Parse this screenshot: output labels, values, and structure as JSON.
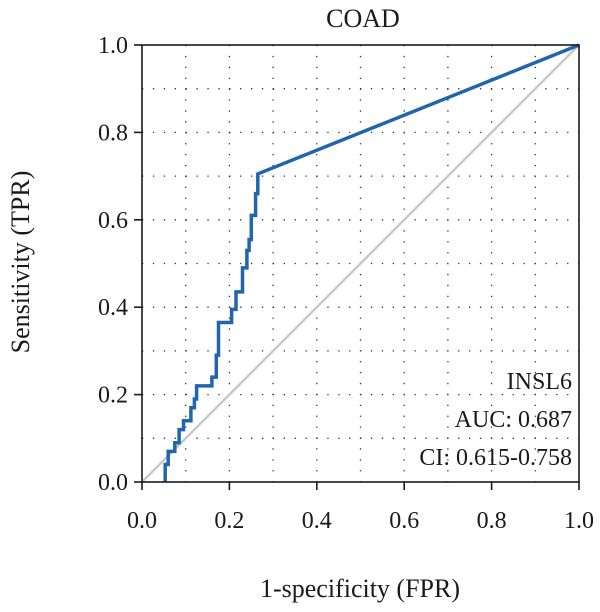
{
  "chart_data": {
    "type": "line",
    "title": "COAD",
    "xlabel": "1-specificity (FPR)",
    "ylabel": "Sensitivity (TPR)",
    "xlim": [
      0.0,
      1.0
    ],
    "ylim": [
      0.0,
      1.0
    ],
    "x_ticks": [
      "0.0",
      "0.2",
      "0.4",
      "0.6",
      "0.8",
      "1.0"
    ],
    "y_ticks": [
      "0.0",
      "0.2",
      "0.4",
      "0.6",
      "0.8",
      "1.0"
    ],
    "grid": "dotted",
    "series": [
      {
        "name": "INSL6",
        "color": "#2166ac",
        "x": [
          0.053,
          0.053,
          0.06,
          0.06,
          0.075,
          0.075,
          0.085,
          0.085,
          0.095,
          0.095,
          0.112,
          0.112,
          0.12,
          0.12,
          0.125,
          0.125,
          0.13,
          0.13,
          0.16,
          0.16,
          0.17,
          0.17,
          0.175,
          0.175,
          0.205,
          0.205,
          0.215,
          0.215,
          0.23,
          0.23,
          0.24,
          0.24,
          0.245,
          0.245,
          0.25,
          0.25,
          0.26,
          0.26,
          0.265,
          0.265,
          1.0
        ],
        "y": [
          0.0,
          0.04,
          0.04,
          0.07,
          0.07,
          0.09,
          0.09,
          0.12,
          0.12,
          0.14,
          0.14,
          0.17,
          0.17,
          0.19,
          0.19,
          0.22,
          0.22,
          0.22,
          0.22,
          0.24,
          0.24,
          0.29,
          0.29,
          0.365,
          0.365,
          0.395,
          0.395,
          0.435,
          0.435,
          0.49,
          0.49,
          0.53,
          0.53,
          0.555,
          0.555,
          0.61,
          0.61,
          0.66,
          0.66,
          0.705,
          1.0
        ]
      },
      {
        "name": "",
        "color": "#c8c8c8",
        "x": [
          0.0,
          1.0
        ],
        "y": [
          0.0,
          1.0
        ]
      }
    ],
    "annotations": [
      "INSL6",
      "AUC: 0.687",
      "CI: 0.615-0.758"
    ]
  }
}
